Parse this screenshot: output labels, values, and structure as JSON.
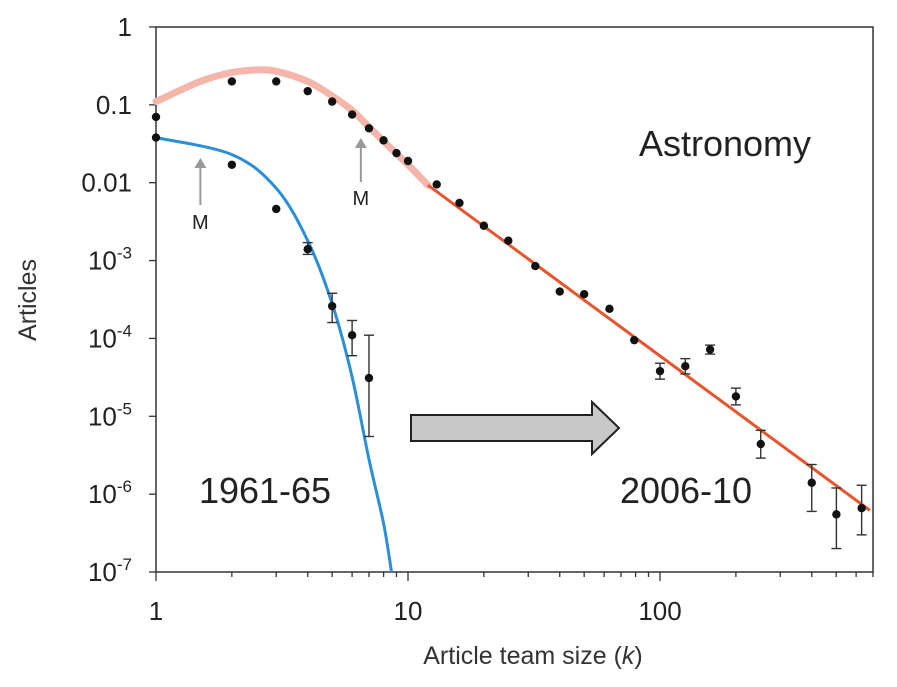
{
  "chart_data": {
    "type": "scatter",
    "title": "",
    "xlabel": "Article team size (k)",
    "ylabel": "Articles",
    "x_scale": "log",
    "y_scale": "log",
    "xlim": [
      1,
      700
    ],
    "ylim": [
      1e-07,
      1
    ],
    "x_ticks": [
      {
        "value": 1,
        "label": "1"
      },
      {
        "value": 10,
        "label": "10"
      },
      {
        "value": 100,
        "label": "100"
      }
    ],
    "y_ticks": [
      {
        "value": 1,
        "base": "1",
        "exp": ""
      },
      {
        "value": 0.1,
        "base": "0.1",
        "exp": ""
      },
      {
        "value": 0.01,
        "base": "0.01",
        "exp": ""
      },
      {
        "value": 0.001,
        "base": "10",
        "exp": "-3"
      },
      {
        "value": 0.0001,
        "base": "10",
        "exp": "-4"
      },
      {
        "value": 1e-05,
        "base": "10",
        "exp": "-5"
      },
      {
        "value": 1e-06,
        "base": "10",
        "exp": "-6"
      },
      {
        "value": 1e-07,
        "base": "10",
        "exp": "-7"
      }
    ],
    "grid": false,
    "legend": "none",
    "series": [
      {
        "label": "1961-65",
        "fit_color": "#2a8fd6",
        "points": [
          {
            "x": 1,
            "y": 0.038
          },
          {
            "x": 2,
            "y": 0.017
          },
          {
            "x": 3,
            "y": 0.0046
          },
          {
            "x": 4,
            "y": 0.0014,
            "err_lo": 0.0012,
            "err_hi": 0.0017
          },
          {
            "x": 5,
            "y": 0.00026,
            "err_lo": 0.00016,
            "err_hi": 0.00038
          },
          {
            "x": 6,
            "y": 0.00011,
            "err_lo": 6e-05,
            "err_hi": 0.00017
          },
          {
            "x": 7,
            "y": 3.1e-05,
            "err_lo": 5.5e-06,
            "err_hi": 0.00011
          }
        ],
        "fit": [
          [
            1,
            0.038
          ],
          [
            2,
            0.023
          ],
          [
            3,
            0.0085
          ],
          [
            4,
            0.0018
          ],
          [
            5,
            0.00028
          ],
          [
            6,
            3.2e-05
          ],
          [
            7,
            2.8e-06
          ],
          [
            8,
            4.2e-07
          ],
          [
            8.6,
            1e-07
          ]
        ]
      },
      {
        "label": "2006-10",
        "fit_color": "#e8542b",
        "fit_head_color": "#f4b6aa",
        "points": [
          {
            "x": 1,
            "y": 0.07
          },
          {
            "x": 2,
            "y": 0.2
          },
          {
            "x": 3,
            "y": 0.2
          },
          {
            "x": 4,
            "y": 0.15
          },
          {
            "x": 5,
            "y": 0.11
          },
          {
            "x": 6,
            "y": 0.075
          },
          {
            "x": 7,
            "y": 0.05
          },
          {
            "x": 8,
            "y": 0.035
          },
          {
            "x": 9,
            "y": 0.024
          },
          {
            "x": 10,
            "y": 0.019
          },
          {
            "x": 13,
            "y": 0.0095
          },
          {
            "x": 16,
            "y": 0.0055
          },
          {
            "x": 20,
            "y": 0.0028
          },
          {
            "x": 25,
            "y": 0.0018
          },
          {
            "x": 32,
            "y": 0.00085
          },
          {
            "x": 40,
            "y": 0.0004
          },
          {
            "x": 50,
            "y": 0.00037
          },
          {
            "x": 63,
            "y": 0.00024
          },
          {
            "x": 79,
            "y": 9.5e-05
          },
          {
            "x": 100,
            "y": 3.8e-05,
            "err_lo": 3e-05,
            "err_hi": 4.8e-05
          },
          {
            "x": 126,
            "y": 4.4e-05,
            "err_lo": 3.5e-05,
            "err_hi": 5.5e-05
          },
          {
            "x": 158,
            "y": 7.2e-05,
            "err_lo": 6.3e-05,
            "err_hi": 8.2e-05
          },
          {
            "x": 200,
            "y": 1.8e-05,
            "err_lo": 1.4e-05,
            "err_hi": 2.3e-05
          },
          {
            "x": 251,
            "y": 4.4e-06,
            "err_lo": 2.9e-06,
            "err_hi": 6.6e-06
          },
          {
            "x": 400,
            "y": 1.4e-06,
            "err_lo": 6e-07,
            "err_hi": 2.4e-06
          },
          {
            "x": 501,
            "y": 5.5e-07,
            "err_lo": 2e-07,
            "err_hi": 1.2e-06
          },
          {
            "x": 631,
            "y": 6.6e-07,
            "err_lo": 3e-07,
            "err_hi": 1.3e-06
          }
        ],
        "fit_head": [
          [
            1,
            0.11
          ],
          [
            1.5,
            0.2
          ],
          [
            2,
            0.26
          ],
          [
            2.5,
            0.28
          ],
          [
            3,
            0.27
          ],
          [
            4,
            0.2
          ],
          [
            5,
            0.13
          ],
          [
            6,
            0.085
          ],
          [
            7,
            0.052
          ],
          [
            8,
            0.034
          ],
          [
            10,
            0.017
          ],
          [
            12,
            0.0093
          ]
        ],
        "fit_tail": [
          [
            12,
            0.0093
          ],
          [
            680,
            6.2e-07
          ]
        ]
      }
    ],
    "annotations": {
      "field_label": "Astronomy",
      "period_start": "1961-65",
      "period_end": "2006-10",
      "marker_1": {
        "label": "M",
        "x": 1.5
      },
      "marker_2": {
        "label": "M",
        "x": 6.5
      }
    },
    "colors": {
      "axis": "#333333",
      "points": "#111111",
      "arrow_fill": "#c8c8c8",
      "arrow_stroke": "#222222",
      "marker_arrow": "#999999"
    }
  }
}
